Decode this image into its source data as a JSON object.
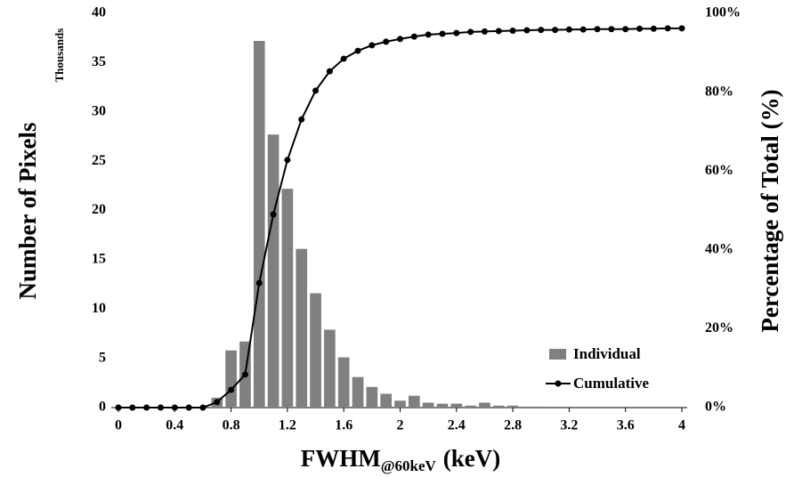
{
  "chart_data": {
    "type": "histogram",
    "ylabel": "Number of Pixels",
    "y_unit_note": "Thousands",
    "y2label": "Percentage of Total (%)",
    "xlabel": {
      "main": "FWHM",
      "sub": "@60keV",
      "unit": "(keV)"
    },
    "xlim": [
      0,
      4
    ],
    "xticks": [
      0,
      0.4,
      0.8,
      1.2,
      1.6,
      2,
      2.4,
      2.8,
      3.2,
      3.6,
      4
    ],
    "ylim": [
      0,
      40
    ],
    "yticks": [
      0,
      5,
      10,
      15,
      20,
      25,
      30,
      35,
      40
    ],
    "y2lim": [
      0,
      100
    ],
    "y2ticks": [
      {
        "value": 0,
        "label": "0%"
      },
      {
        "value": 20,
        "label": "20%"
      },
      {
        "value": 40,
        "label": "40%"
      },
      {
        "value": 60,
        "label": "60%"
      },
      {
        "value": 80,
        "label": "80%"
      },
      {
        "value": 100,
        "label": "100%"
      }
    ],
    "legend": "lower right",
    "bins": [
      0.65,
      0.75,
      0.85,
      0.95,
      1.05,
      1.15,
      1.25,
      1.35,
      1.45,
      1.55,
      1.65,
      1.75,
      1.85,
      1.95,
      2.05,
      2.15,
      2.25,
      2.35,
      2.45,
      2.55,
      2.65,
      2.75,
      2.85,
      2.95,
      3.05
    ],
    "series": [
      {
        "name": "Individual",
        "type": "histogram",
        "color": "#808080",
        "values": [
          1.0,
          5.8,
          6.7,
          37.2,
          27.7,
          22.2,
          16.1,
          11.6,
          7.9,
          5.1,
          3.1,
          2.1,
          1.4,
          0.7,
          1.2,
          0.5,
          0.4,
          0.4,
          0.2,
          0.5,
          0.2,
          0.2,
          0.1,
          0.1
        ]
      },
      {
        "name": "Cumulative",
        "type": "line",
        "axis": "y2",
        "color": "#000000",
        "x": [
          0,
          0.1,
          0.2,
          0.3,
          0.4,
          0.5,
          0.6,
          0.7,
          0.8,
          0.9,
          1.0,
          1.1,
          1.2,
          1.3,
          1.4,
          1.5,
          1.6,
          1.7,
          1.8,
          1.9,
          2.0,
          2.1,
          2.2,
          2.3,
          2.4,
          2.5,
          2.6,
          2.7,
          2.8,
          2.9,
          3.0,
          3.1,
          3.2,
          3.3,
          3.4,
          3.5,
          3.6,
          3.7,
          3.8,
          3.9,
          4.0
        ],
        "values": [
          0,
          0,
          0,
          0,
          0,
          0,
          0,
          1.4,
          4.5,
          8.4,
          31.6,
          49,
          62.8,
          73.1,
          80.4,
          85.3,
          88.5,
          90.5,
          91.9,
          92.8,
          93.5,
          94.1,
          94.6,
          94.8,
          95.0,
          95.3,
          95.4,
          95.5,
          95.6,
          95.7,
          95.8,
          95.8,
          95.9,
          95.9,
          96.0,
          96.0,
          96.0,
          96.1,
          96.1,
          96.2,
          96.2
        ]
      }
    ]
  }
}
